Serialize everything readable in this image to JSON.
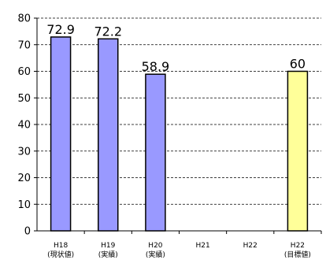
{
  "chart_data": {
    "type": "bar",
    "categories": [
      "H18",
      "H19",
      "H20",
      "H21",
      "H22",
      "H22"
    ],
    "category_notes": [
      "(現状値)",
      "(実績)",
      "(実績)",
      "",
      "",
      "(目標値)"
    ],
    "values": [
      72.9,
      72.2,
      58.9,
      null,
      null,
      60
    ],
    "value_labels": [
      "72.9",
      "72.2",
      "58.9",
      "",
      "",
      "60"
    ],
    "bar_colors": [
      "#9999ff",
      "#9999ff",
      "#9999ff",
      null,
      null,
      "#ffff99"
    ],
    "ylim": [
      0,
      80
    ],
    "yticks": [
      0,
      10,
      20,
      30,
      40,
      50,
      60,
      70,
      80
    ],
    "grid": "dashed horizontal",
    "title": "",
    "xlabel": "",
    "ylabel": ""
  }
}
